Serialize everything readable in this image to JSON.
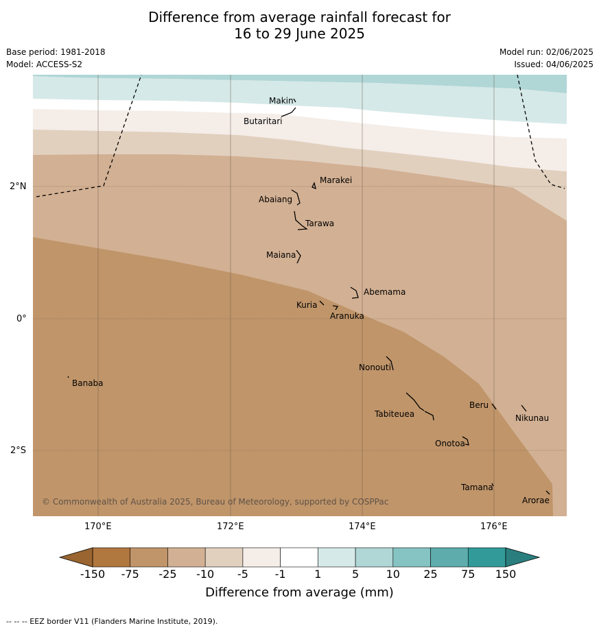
{
  "title_line1": "Difference from average rainfall forecast for",
  "title_line2": "16 to 29 June 2025",
  "base_period": "Base period: 1981-2018",
  "model": "Model: ACCESS-S2",
  "model_run": "Model run: 02/06/2025",
  "issued": "Issued: 04/06/2025",
  "copyright": "© Commonwealth of Australia 2025, Bureau of Meteorology, supported by COSPPac",
  "lat_ticks": [
    "2°N",
    "0°",
    "2°S"
  ],
  "lon_ticks": [
    "170°E",
    "172°E",
    "174°E",
    "176°E"
  ],
  "islands": [
    "Makin",
    "Butaritari",
    "Marakei",
    "Abaiang",
    "Tarawa",
    "Maiana",
    "Abemama",
    "Kuria",
    "Aranuka",
    "Nonouti",
    "Banaba",
    "Beru",
    "Nikunau",
    "Tabiteuea",
    "Onotoa",
    "Tamana",
    "Arorae"
  ],
  "colorbar": {
    "title": "Difference from average (mm)",
    "labels": [
      "-150",
      "-75",
      "-25",
      "-10",
      "-5",
      "-1",
      "1",
      "5",
      "10",
      "25",
      "75",
      "150"
    ],
    "colors": [
      "#b0773f",
      "#c0956a",
      "#d2b093",
      "#e2d0bf",
      "#f4ede8",
      "#ffffff",
      "#d5e9e8",
      "#b0d6d6",
      "#86c3c3",
      "#5eacac",
      "#329b9a"
    ]
  },
  "footnote": "-- -- -- EEZ border V11 (Flanders Marine Institute, 2019)."
}
